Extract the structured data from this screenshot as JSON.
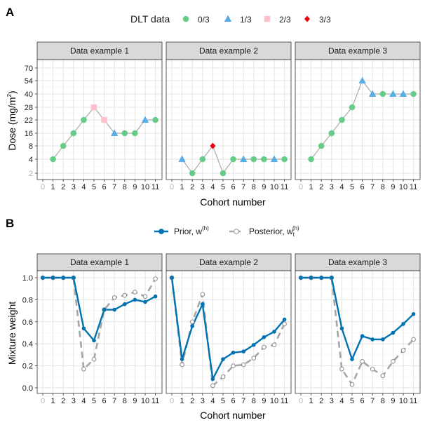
{
  "figure": {
    "panel_a_label": "A",
    "panel_b_label": "B"
  },
  "chart_data": [
    {
      "type": "line",
      "panel": "A",
      "legend_title": "DLT data",
      "legend_entries": [
        {
          "label": "0/3",
          "shape": "circle",
          "color": "#66cc88"
        },
        {
          "label": "1/3",
          "shape": "triangle",
          "color": "#56aee8"
        },
        {
          "label": "2/3",
          "shape": "square",
          "color": "#ffc0cb"
        },
        {
          "label": "3/3",
          "shape": "diamond",
          "color": "#e8000b"
        }
      ],
      "line_color": "#aaaaaa",
      "xlabel": "Cohort number",
      "ylabel": "Dose (mg/m",
      "ylabel_sup": "2",
      "ylabel_end": ")",
      "x_ticks": [
        "0",
        "1",
        "2",
        "3",
        "4",
        "5",
        "6",
        "7",
        "8",
        "9",
        "10",
        "11"
      ],
      "y_ticks": [
        "2",
        "4",
        "8",
        "16",
        "22",
        "28",
        "40",
        "54",
        "70"
      ],
      "facets": [
        {
          "title": "Data example 1",
          "x": [
            1,
            2,
            3,
            4,
            5,
            6,
            7,
            8,
            9,
            10,
            11
          ],
          "dose": [
            "4",
            "8",
            "16",
            "22",
            "28",
            "22",
            "16",
            "16",
            "16",
            "22",
            "22"
          ],
          "dlt": [
            "0/3",
            "0/3",
            "0/3",
            "0/3",
            "2/3",
            "2/3",
            "1/3",
            "0/3",
            "0/3",
            "1/3",
            "0/3"
          ]
        },
        {
          "title": "Data example 2",
          "x": [
            1,
            2,
            3,
            4,
            5,
            6,
            7,
            8,
            9,
            10,
            11
          ],
          "dose": [
            "4",
            "2",
            "4",
            "8",
            "2",
            "4",
            "4",
            "4",
            "4",
            "4",
            "4"
          ],
          "dlt": [
            "1/3",
            "0/3",
            "0/3",
            "3/3",
            "0/3",
            "0/3",
            "1/3",
            "0/3",
            "0/3",
            "1/3",
            "0/3"
          ]
        },
        {
          "title": "Data example 3",
          "x": [
            1,
            2,
            3,
            4,
            5,
            6,
            7,
            8,
            9,
            10,
            11
          ],
          "dose": [
            "4",
            "8",
            "16",
            "22",
            "28",
            "54",
            "40",
            "40",
            "40",
            "40",
            "40"
          ],
          "dlt": [
            "0/3",
            "0/3",
            "0/3",
            "0/3",
            "0/3",
            "1/3",
            "1/3",
            "0/3",
            "1/3",
            "1/3",
            "0/3"
          ]
        }
      ]
    },
    {
      "type": "line",
      "panel": "B",
      "series": [
        {
          "name": "Prior, w",
          "sup": "(h)",
          "color": "#0072b2",
          "style": "solid",
          "marker": "filled-circle"
        },
        {
          "name": "Posterior, w",
          "sub": "t",
          "sup": "(h)",
          "color": "#a6a6a6",
          "style": "dashed",
          "marker": "open-circle"
        }
      ],
      "xlabel": "Cohort number",
      "ylabel": "Mixture weight",
      "ylim": [
        0,
        1
      ],
      "x_ticks": [
        "0",
        "1",
        "2",
        "3",
        "4",
        "5",
        "6",
        "7",
        "8",
        "9",
        "10",
        "11"
      ],
      "y_ticks": [
        "0.0",
        "0.2",
        "0.4",
        "0.6",
        "0.8",
        "1.0"
      ],
      "facets": [
        {
          "title": "Data example 1",
          "x": [
            0,
            1,
            2,
            3,
            4,
            5,
            6,
            7,
            8,
            9,
            10,
            11
          ],
          "prior": [
            1.0,
            1.0,
            1.0,
            1.0,
            0.54,
            0.43,
            0.71,
            0.71,
            0.76,
            0.8,
            0.78,
            0.83
          ],
          "posterior": [
            1.0,
            1.0,
            1.0,
            1.0,
            0.17,
            0.26,
            0.71,
            0.82,
            0.84,
            0.87,
            0.83,
            0.99
          ]
        },
        {
          "title": "Data example 2",
          "x": [
            0,
            1,
            2,
            3,
            4,
            5,
            6,
            7,
            8,
            9,
            10,
            11
          ],
          "prior": [
            1.0,
            0.26,
            0.56,
            0.76,
            0.08,
            0.26,
            0.32,
            0.33,
            0.39,
            0.46,
            0.51,
            0.62
          ],
          "posterior": [
            1.0,
            0.21,
            0.6,
            0.85,
            0.02,
            0.1,
            0.2,
            0.21,
            0.27,
            0.37,
            0.39,
            0.58
          ]
        },
        {
          "title": "Data example 3",
          "x": [
            0,
            1,
            2,
            3,
            4,
            5,
            6,
            7,
            8,
            9,
            10,
            11
          ],
          "prior": [
            1.0,
            1.0,
            1.0,
            1.0,
            0.54,
            0.26,
            0.47,
            0.44,
            0.44,
            0.5,
            0.58,
            0.67
          ],
          "posterior": [
            1.0,
            1.0,
            1.0,
            1.0,
            0.17,
            0.03,
            0.24,
            0.17,
            0.11,
            0.24,
            0.34,
            0.44
          ]
        }
      ]
    }
  ]
}
